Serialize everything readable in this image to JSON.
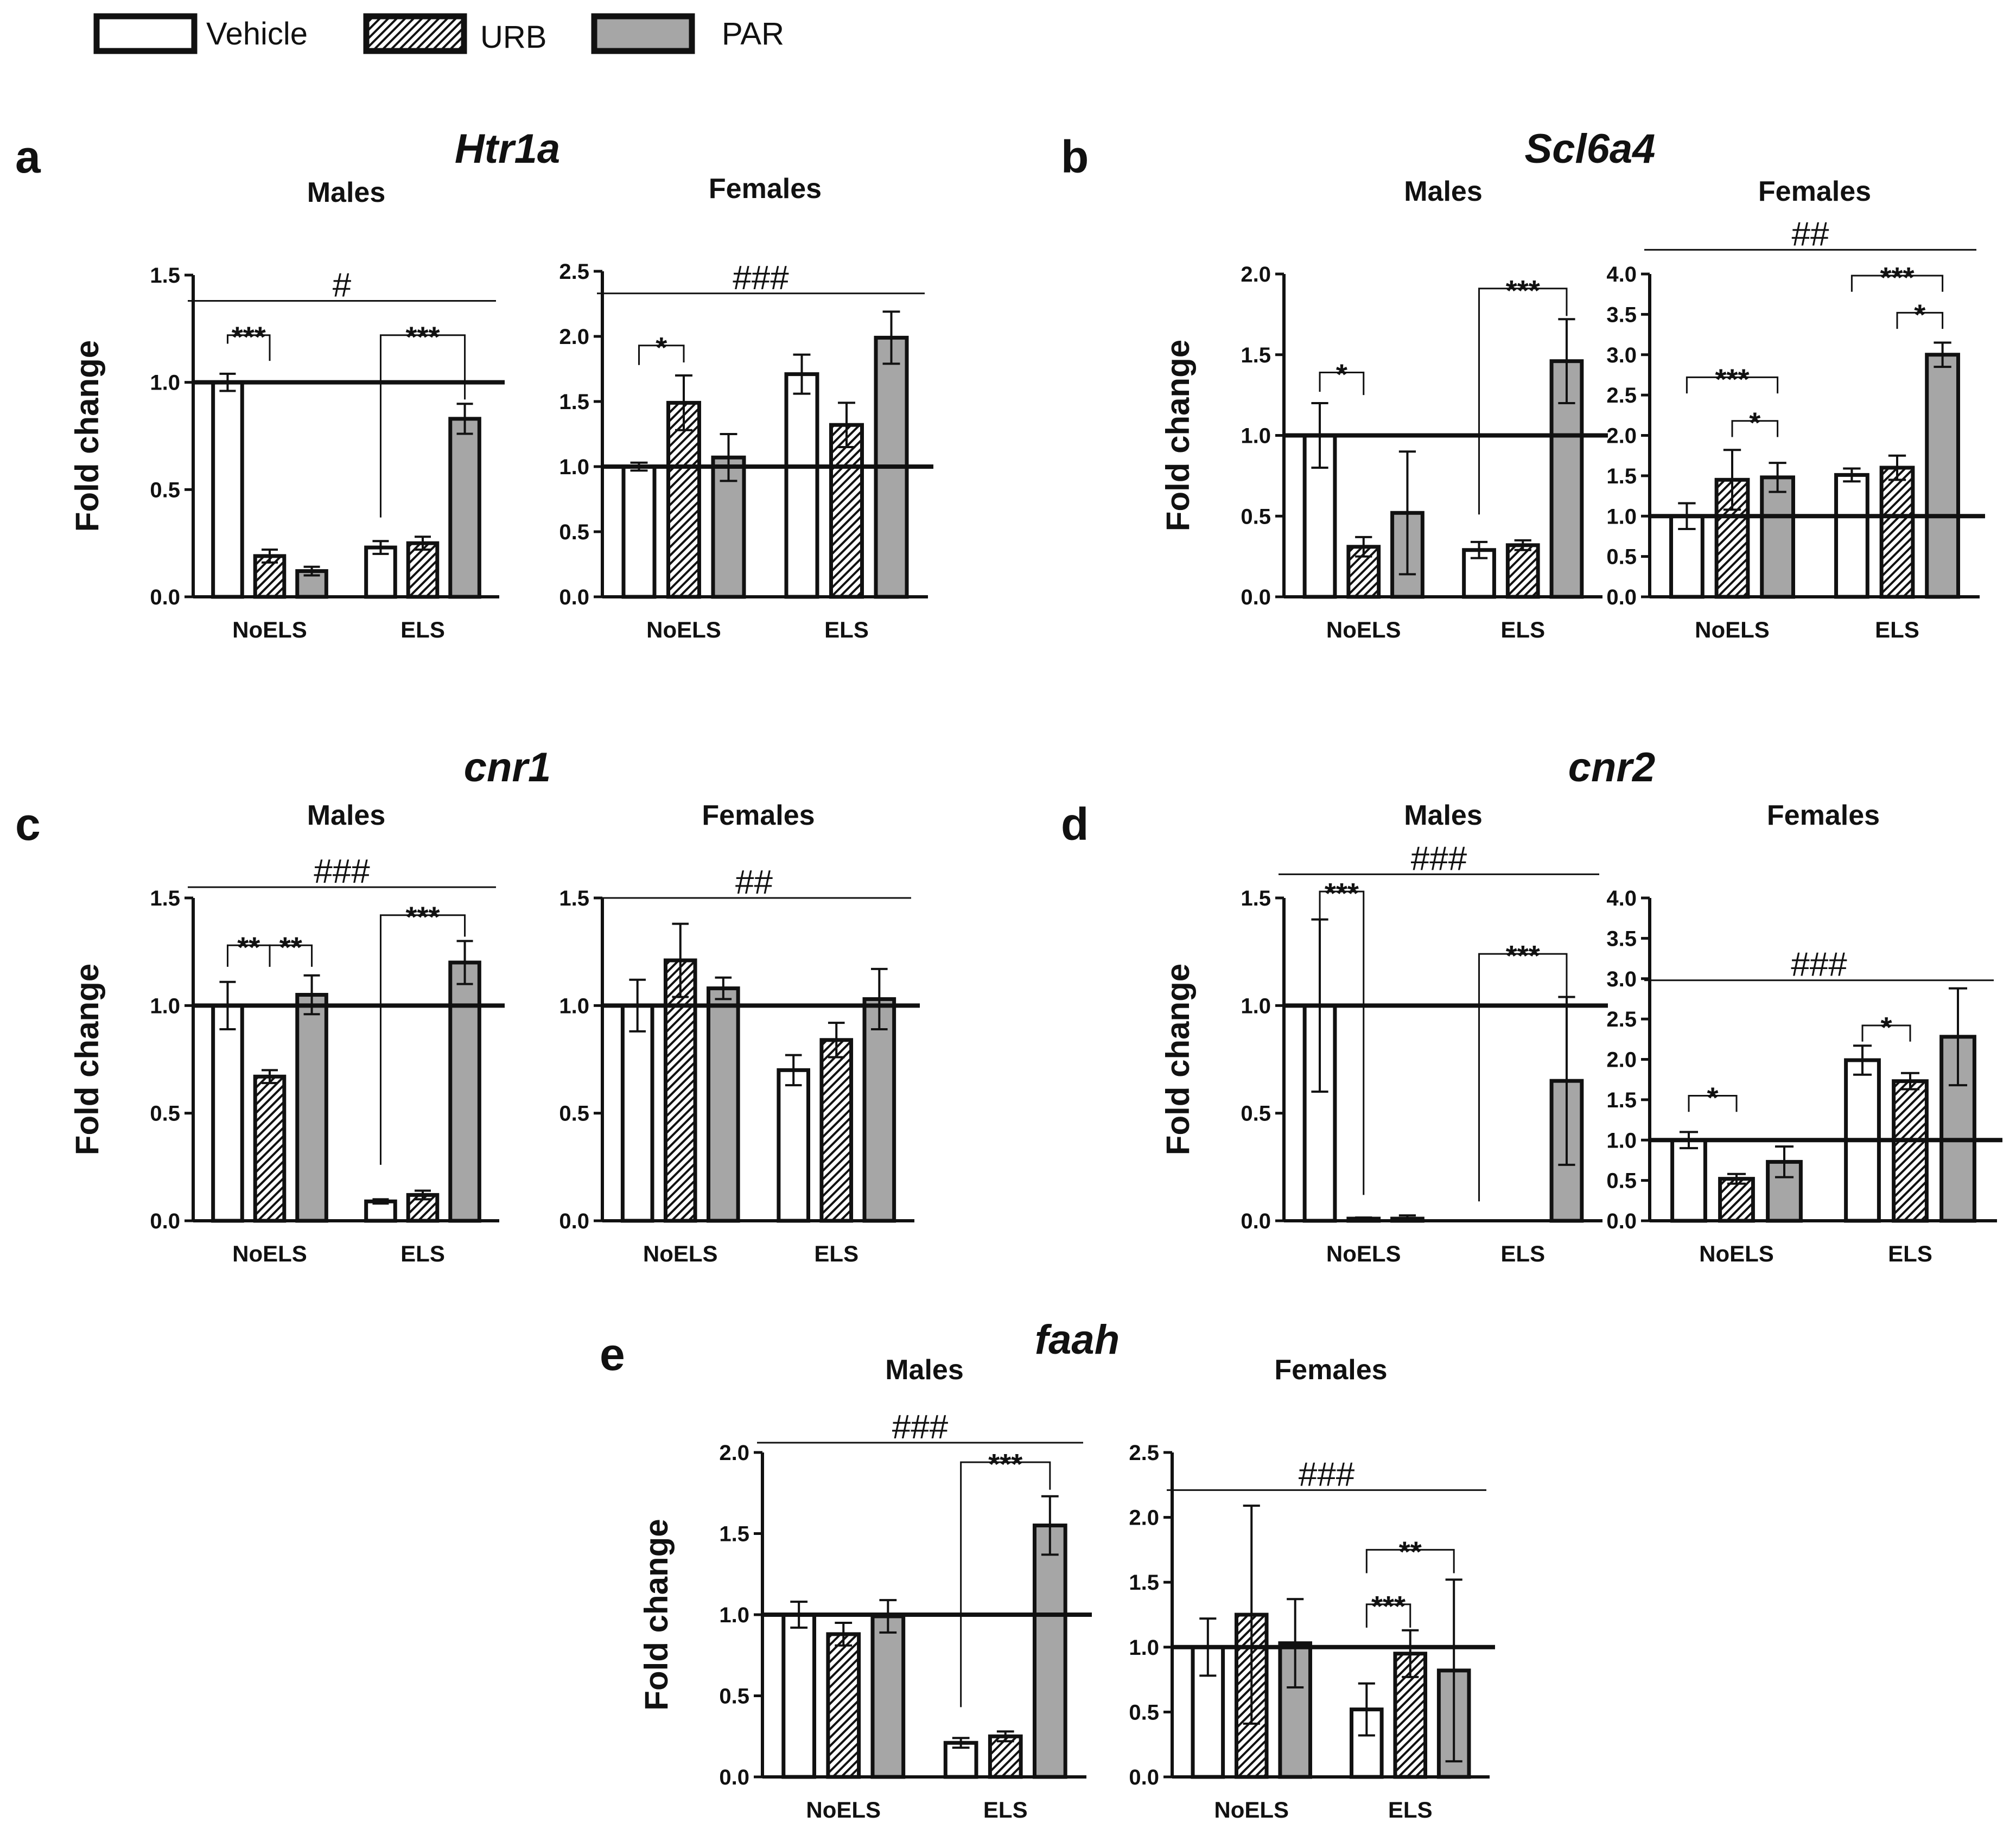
{
  "legend": [
    {
      "label": "Vehicle",
      "fill": "white"
    },
    {
      "label": "URB",
      "fill": "hatch"
    },
    {
      "label": "PAR",
      "fill": "gray"
    }
  ],
  "colors": {
    "par_gray": "#a6a6a6",
    "line": "#111111",
    "background": "#ffffff"
  },
  "y_axis_label": "Fold change",
  "panel_letters": [
    "a",
    "b",
    "c",
    "d",
    "e"
  ],
  "gene_titles": [
    "Htr1a",
    "Scl6a4",
    "cnr1",
    "cnr2",
    "faah"
  ],
  "chart_data": [
    {
      "id": "a-males",
      "type": "bar",
      "title": "Males",
      "gene": "Htr1a",
      "letter": "a",
      "ylabel": "Fold change",
      "ylim": [
        0,
        1.5
      ],
      "yticks": [
        "0.0",
        "0.5",
        "1.0",
        "1.5"
      ],
      "ref_line": 1.0,
      "categories": [
        "NoELS",
        "ELS"
      ],
      "series": [
        {
          "name": "Vehicle",
          "values": [
            1.0,
            0.23
          ],
          "errors": [
            0.04,
            0.03
          ]
        },
        {
          "name": "URB",
          "values": [
            0.19,
            0.25
          ],
          "errors": [
            0.03,
            0.03
          ]
        },
        {
          "name": "PAR",
          "values": [
            0.12,
            0.83
          ],
          "errors": [
            0.02,
            0.07
          ]
        }
      ],
      "annotations": [
        {
          "text": "#",
          "type": "line",
          "x1": 0,
          "x2": 1,
          "y": 1.38
        },
        {
          "text": "***",
          "type": "bracket",
          "x1": [
            0,
            "Vehicle"
          ],
          "x2": [
            0,
            "URB"
          ],
          "y": 1.22,
          "stubLeft": 0.04,
          "stubRight": 0.12
        },
        {
          "text": "***",
          "type": "bracket",
          "x1": [
            1,
            "Vehicle"
          ],
          "x2": [
            1,
            "PAR"
          ],
          "y": 1.22,
          "stubLeft": 0.85,
          "stubRight": 0.3
        }
      ]
    },
    {
      "id": "a-females",
      "type": "bar",
      "title": "Females",
      "gene": "",
      "letter": "",
      "ylabel": "",
      "ylim": [
        0,
        2.5
      ],
      "yticks": [
        "0.0",
        "0.5",
        "1.0",
        "1.5",
        "2.0",
        "2.5"
      ],
      "ref_line": 1.0,
      "categories": [
        "NoELS",
        "ELS"
      ],
      "series": [
        {
          "name": "Vehicle",
          "values": [
            1.0,
            1.71
          ],
          "errors": [
            0.03,
            0.15
          ]
        },
        {
          "name": "URB",
          "values": [
            1.49,
            1.32
          ],
          "errors": [
            0.21,
            0.17
          ]
        },
        {
          "name": "PAR",
          "values": [
            1.07,
            1.99
          ],
          "errors": [
            0.18,
            0.2
          ]
        }
      ],
      "annotations": [
        {
          "text": "###",
          "type": "line",
          "x1": 0,
          "x2": 1,
          "y": 2.33
        },
        {
          "text": "*",
          "type": "bracket",
          "x1": [
            0,
            "Vehicle"
          ],
          "x2": [
            0,
            "URB"
          ],
          "y": 1.93,
          "stubLeft": 0.15,
          "stubRight": 0.13
        }
      ]
    },
    {
      "id": "b-males",
      "type": "bar",
      "title": "Males",
      "gene": "Scl6a4",
      "letter": "b",
      "ylabel": "Fold change",
      "ylim": [
        0,
        2.0
      ],
      "yticks": [
        "0.0",
        "0.5",
        "1.0",
        "1.5",
        "2.0"
      ],
      "ref_line": 1.0,
      "categories": [
        "NoELS",
        "ELS"
      ],
      "series": [
        {
          "name": "Vehicle",
          "values": [
            1.0,
            0.29
          ],
          "errors": [
            0.2,
            0.05
          ]
        },
        {
          "name": "URB",
          "values": [
            0.31,
            0.32
          ],
          "errors": [
            0.06,
            0.03
          ]
        },
        {
          "name": "PAR",
          "values": [
            0.52,
            1.46
          ],
          "errors": [
            0.38,
            0.26
          ]
        }
      ],
      "annotations": [
        {
          "text": "*",
          "type": "bracket",
          "x1": [
            0,
            "Vehicle"
          ],
          "x2": [
            0,
            "URB"
          ],
          "y": 1.39,
          "stubLeft": 0.12,
          "stubRight": 0.14
        },
        {
          "text": "***",
          "type": "bracket",
          "x1": [
            1,
            "Vehicle"
          ],
          "x2": [
            1,
            "PAR"
          ],
          "y": 1.91,
          "stubLeft": 1.4,
          "stubRight": 0.17
        }
      ]
    },
    {
      "id": "b-females",
      "type": "bar",
      "title": "Females",
      "gene": "",
      "letter": "",
      "ylabel": "",
      "ylim": [
        0,
        4.0
      ],
      "yticks": [
        "0.0",
        "0.5",
        "1.0",
        "1.5",
        "2.0",
        "2.5",
        "3.0",
        "3.5",
        "4.0"
      ],
      "ref_line": 1.0,
      "categories": [
        "NoELS",
        "ELS"
      ],
      "series": [
        {
          "name": "Vehicle",
          "values": [
            1.0,
            1.51
          ],
          "errors": [
            0.16,
            0.08
          ]
        },
        {
          "name": "URB",
          "values": [
            1.45,
            1.6
          ],
          "errors": [
            0.37,
            0.15
          ]
        },
        {
          "name": "PAR",
          "values": [
            1.48,
            3.0
          ],
          "errors": [
            0.18,
            0.15
          ]
        }
      ],
      "annotations": [
        {
          "text": "##",
          "type": "line",
          "x1": 0,
          "x2": 1,
          "y": 4.3
        },
        {
          "text": "***",
          "type": "bracket",
          "x1": [
            0,
            "Vehicle"
          ],
          "x2": [
            0,
            "PAR"
          ],
          "y": 2.72,
          "stubLeft": 0.2,
          "stubRight": 0.2
        },
        {
          "text": "*",
          "type": "bracket",
          "x1": [
            0,
            "URB"
          ],
          "x2": [
            0,
            "PAR"
          ],
          "y": 2.18,
          "stubLeft": 0.2,
          "stubRight": 0.2
        },
        {
          "text": "***",
          "type": "bracket",
          "x1": [
            1,
            "Vehicle"
          ],
          "x2": [
            1,
            "PAR"
          ],
          "y": 3.98,
          "stubLeft": 0.2,
          "stubRight": 0.2
        },
        {
          "text": "*",
          "type": "bracket",
          "x1": [
            1,
            "URB"
          ],
          "x2": [
            1,
            "PAR"
          ],
          "y": 3.52,
          "stubLeft": 0.2,
          "stubRight": 0.2
        }
      ]
    },
    {
      "id": "c-males",
      "type": "bar",
      "title": "Males",
      "gene": "cnr1",
      "letter": "c",
      "ylabel": "Fold change",
      "ylim": [
        0,
        1.5
      ],
      "yticks": [
        "0.0",
        "0.5",
        "1.0",
        "1.5"
      ],
      "ref_line": 1.0,
      "categories": [
        "NoELS",
        "ELS"
      ],
      "series": [
        {
          "name": "Vehicle",
          "values": [
            1.0,
            0.09
          ],
          "errors": [
            0.11,
            0.01
          ]
        },
        {
          "name": "URB",
          "values": [
            0.67,
            0.12
          ],
          "errors": [
            0.03,
            0.02
          ]
        },
        {
          "name": "PAR",
          "values": [
            1.05,
            1.2
          ],
          "errors": [
            0.09,
            0.1
          ]
        }
      ],
      "annotations": [
        {
          "text": "###",
          "type": "line",
          "x1": 0,
          "x2": 1,
          "y": 1.55
        },
        {
          "text": "**",
          "type": "bracket",
          "x1": [
            0,
            "Vehicle"
          ],
          "x2": [
            0,
            "URB"
          ],
          "y": 1.28,
          "stubLeft": 0.1,
          "stubRight": 0.1
        },
        {
          "text": "**",
          "type": "bracket",
          "x1": [
            0,
            "URB"
          ],
          "x2": [
            0,
            "PAR"
          ],
          "y": 1.28,
          "stubLeft": 0.1,
          "stubRight": 0.1
        },
        {
          "text": "***",
          "type": "bracket",
          "x1": [
            1,
            "Vehicle"
          ],
          "x2": [
            1,
            "PAR"
          ],
          "y": 1.42,
          "stubLeft": 1.16,
          "stubRight": 0.1
        }
      ]
    },
    {
      "id": "c-females",
      "type": "bar",
      "title": "Females",
      "gene": "",
      "letter": "",
      "ylabel": "",
      "ylim": [
        0,
        1.5
      ],
      "yticks": [
        "0.0",
        "0.5",
        "1.0",
        "1.5"
      ],
      "ref_line": 1.0,
      "categories": [
        "NoELS",
        "ELS"
      ],
      "series": [
        {
          "name": "Vehicle",
          "values": [
            1.0,
            0.7
          ],
          "errors": [
            0.12,
            0.07
          ]
        },
        {
          "name": "URB",
          "values": [
            1.21,
            0.84
          ],
          "errors": [
            0.17,
            0.08
          ]
        },
        {
          "name": "PAR",
          "values": [
            1.08,
            1.03
          ],
          "errors": [
            0.05,
            0.14
          ]
        }
      ],
      "annotations": [
        {
          "text": "##",
          "type": "line",
          "x1": 0,
          "x2": 1,
          "y": 1.5
        }
      ]
    },
    {
      "id": "d-males",
      "type": "bar",
      "title": "Males",
      "gene": "cnr2",
      "letter": "d",
      "ylabel": "Fold change",
      "ylim": [
        0,
        1.5
      ],
      "yticks": [
        "0.0",
        "0.5",
        "1.0",
        "1.5"
      ],
      "ref_line": 1.0,
      "categories": [
        "NoELS",
        "ELS"
      ],
      "series": [
        {
          "name": "Vehicle",
          "values": [
            1.0,
            0.0
          ],
          "errors": [
            0.4,
            0.0
          ]
        },
        {
          "name": "URB",
          "values": [
            0.01,
            0.0
          ],
          "errors": [
            0.005,
            0.0
          ]
        },
        {
          "name": "PAR",
          "values": [
            0.01,
            0.65
          ],
          "errors": [
            0.015,
            0.39
          ]
        }
      ],
      "annotations": [
        {
          "text": "###",
          "type": "line",
          "x1": 0,
          "x2": 1,
          "y": 1.61
        },
        {
          "text": "***",
          "type": "bracket",
          "x1": [
            0,
            "Vehicle"
          ],
          "x2": [
            0,
            "URB"
          ],
          "y": 1.53,
          "stubLeft": 0.13,
          "stubRight": 1.41
        },
        {
          "text": "***",
          "type": "bracket",
          "x1": [
            1,
            "Vehicle"
          ],
          "x2": [
            1,
            "PAR"
          ],
          "y": 1.24,
          "stubLeft": 1.15,
          "stubRight": 0.2
        }
      ]
    },
    {
      "id": "d-females",
      "type": "bar",
      "title": "Females",
      "gene": "",
      "letter": "",
      "ylabel": "",
      "ylim": [
        0,
        4.0
      ],
      "yticks": [
        "0.0",
        "0.5",
        "1.0",
        "1.5",
        "2.0",
        "2.5",
        "3.0",
        "3.5",
        "4.0"
      ],
      "ref_line": 1.0,
      "categories": [
        "NoELS",
        "ELS"
      ],
      "series": [
        {
          "name": "Vehicle",
          "values": [
            1.0,
            1.99
          ],
          "errors": [
            0.1,
            0.18
          ]
        },
        {
          "name": "URB",
          "values": [
            0.52,
            1.73
          ],
          "errors": [
            0.06,
            0.1
          ]
        },
        {
          "name": "PAR",
          "values": [
            0.73,
            2.28
          ],
          "errors": [
            0.19,
            0.6
          ]
        }
      ],
      "annotations": [
        {
          "text": "###",
          "type": "line",
          "x1": 0,
          "x2": 1,
          "y": 2.98
        },
        {
          "text": "*",
          "type": "bracket",
          "x1": [
            0,
            "Vehicle"
          ],
          "x2": [
            0,
            "URB"
          ],
          "y": 1.55,
          "stubLeft": 0.2,
          "stubRight": 0.2
        },
        {
          "text": "*",
          "type": "bracket",
          "x1": [
            1,
            "Vehicle"
          ],
          "x2": [
            1,
            "URB"
          ],
          "y": 2.42,
          "stubLeft": 0.2,
          "stubRight": 0.2
        }
      ]
    },
    {
      "id": "e-males",
      "type": "bar",
      "title": "Males",
      "gene": "faah",
      "letter": "e",
      "ylabel": "Fold change",
      "ylim": [
        0,
        2.0
      ],
      "yticks": [
        "0.0",
        "0.5",
        "1.0",
        "1.5",
        "2.0"
      ],
      "ref_line": 1.0,
      "categories": [
        "NoELS",
        "ELS"
      ],
      "series": [
        {
          "name": "Vehicle",
          "values": [
            1.0,
            0.21
          ],
          "errors": [
            0.08,
            0.03
          ]
        },
        {
          "name": "URB",
          "values": [
            0.88,
            0.25
          ],
          "errors": [
            0.07,
            0.03
          ]
        },
        {
          "name": "PAR",
          "values": [
            0.99,
            1.55
          ],
          "errors": [
            0.1,
            0.18
          ]
        }
      ],
      "annotations": [
        {
          "text": "###",
          "type": "line",
          "x1": 0,
          "x2": 1,
          "y": 2.06
        },
        {
          "text": "***",
          "type": "bracket",
          "x1": [
            1,
            "Vehicle"
          ],
          "x2": [
            1,
            "PAR"
          ],
          "y": 1.94,
          "stubLeft": 1.51,
          "stubRight": 0.17
        }
      ]
    },
    {
      "id": "e-females",
      "type": "bar",
      "title": "Females",
      "gene": "",
      "letter": "",
      "ylabel": "",
      "ylim": [
        0,
        2.5
      ],
      "yticks": [
        "0.0",
        "0.5",
        "1.0",
        "1.5",
        "2.0",
        "2.5"
      ],
      "ref_line": 1.0,
      "categories": [
        "NoELS",
        "ELS"
      ],
      "series": [
        {
          "name": "Vehicle",
          "values": [
            1.0,
            0.52
          ],
          "errors": [
            0.22,
            0.2
          ]
        },
        {
          "name": "URB",
          "values": [
            1.25,
            0.95
          ],
          "errors": [
            0.84,
            0.18
          ]
        },
        {
          "name": "PAR",
          "values": [
            1.03,
            0.82
          ],
          "errors": [
            0.34,
            0.7
          ]
        }
      ],
      "annotations": [
        {
          "text": "###",
          "type": "line",
          "x1": 0,
          "x2": 1,
          "y": 2.21
        },
        {
          "text": "**",
          "type": "bracket",
          "x1": [
            1,
            "Vehicle"
          ],
          "x2": [
            1,
            "PAR"
          ],
          "y": 1.75,
          "stubLeft": 0.18,
          "stubRight": 0.18
        },
        {
          "text": "***",
          "type": "bracket",
          "x1": [
            1,
            "Vehicle"
          ],
          "x2": [
            1,
            "URB"
          ],
          "y": 1.33,
          "stubLeft": 0.18,
          "stubRight": 0.18
        }
      ]
    }
  ]
}
